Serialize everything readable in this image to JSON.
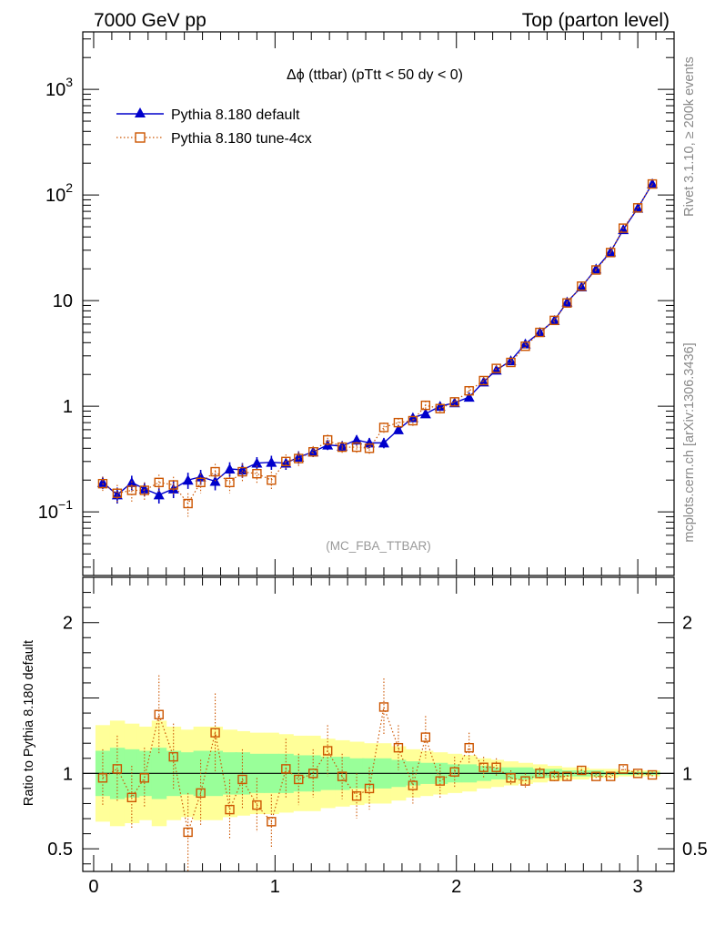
{
  "header": {
    "left": "7000 GeV pp",
    "right": "Top (parton level)"
  },
  "side_labels": {
    "rivet": "Rivet 3.1.10, ≥ 200k events",
    "mcplots": "mcplots.cern.ch [arXiv:1306.3436]"
  },
  "chart_data": [
    {
      "type": "line",
      "title": "Δϕ (ttbar) (pTtt < 50 dy < 0)",
      "watermark": "(MC_FBA_TTBAR)",
      "yscale": "log",
      "xlim": [
        -0.06,
        3.2
      ],
      "ylim": [
        0.025,
        3500
      ],
      "ytick_labels": [
        {
          "value": 0.1,
          "base": "10",
          "exp": "−1"
        },
        {
          "value": 1,
          "base": "1",
          "exp": ""
        },
        {
          "value": 10,
          "base": "10",
          "exp": ""
        },
        {
          "value": 100,
          "base": "10",
          "exp": "2"
        },
        {
          "value": 1000,
          "base": "10",
          "exp": "3"
        }
      ],
      "legend_position": "top-left",
      "x": [
        0.05,
        0.13,
        0.21,
        0.28,
        0.36,
        0.44,
        0.52,
        0.59,
        0.67,
        0.75,
        0.82,
        0.9,
        0.98,
        1.06,
        1.13,
        1.21,
        1.29,
        1.37,
        1.45,
        1.52,
        1.6,
        1.68,
        1.76,
        1.83,
        1.91,
        1.99,
        2.07,
        2.15,
        2.22,
        2.3,
        2.38,
        2.46,
        2.54,
        2.61,
        2.69,
        2.77,
        2.85,
        2.92,
        3.0,
        3.08
      ],
      "series": [
        {
          "name": "Pythia 8.180 default",
          "color": "#0000cc",
          "marker": "filled-triangle",
          "values": [
            0.19,
            0.145,
            0.19,
            0.165,
            0.145,
            0.165,
            0.2,
            0.215,
            0.195,
            0.255,
            0.25,
            0.29,
            0.295,
            0.29,
            0.33,
            0.37,
            0.43,
            0.42,
            0.48,
            0.45,
            0.45,
            0.6,
            0.78,
            0.85,
            1.0,
            1.08,
            1.22,
            1.7,
            2.2,
            2.7,
            3.9,
            5.0,
            6.5,
            9.7,
            13.5,
            20.0,
            29.0,
            47.0,
            75.0,
            128.0
          ],
          "errors": [
            0.025,
            0.025,
            0.03,
            0.025,
            0.025,
            0.03,
            0.035,
            0.035,
            0.035,
            0.04,
            0.04,
            0.04,
            0.045,
            0.04,
            0.045,
            0.04,
            0.045,
            0.045,
            0.05,
            0.05,
            0.05,
            0.05,
            0.06,
            0.06,
            0.07,
            0.07,
            0.07,
            0.08,
            0.09,
            0.1,
            0.12,
            0.15,
            0.18,
            0.25,
            0.3,
            0.4,
            0.5,
            0.8,
            1.1,
            1.6
          ]
        },
        {
          "name": "Pythia 8.180 tune-4cx",
          "color": "#cc5500",
          "marker": "open-square",
          "values": [
            0.185,
            0.15,
            0.16,
            0.16,
            0.19,
            0.18,
            0.12,
            0.19,
            0.24,
            0.19,
            0.24,
            0.23,
            0.2,
            0.3,
            0.32,
            0.37,
            0.48,
            0.41,
            0.41,
            0.4,
            0.63,
            0.7,
            0.73,
            1.02,
            0.95,
            1.1,
            1.4,
            1.75,
            2.28,
            2.6,
            3.7,
            5.0,
            6.5,
            9.5,
            13.7,
            19.5,
            28.5,
            48.5,
            75.5,
            127.0
          ],
          "errors": [
            0.03,
            0.03,
            0.035,
            0.03,
            0.035,
            0.035,
            0.03,
            0.04,
            0.045,
            0.04,
            0.045,
            0.045,
            0.04,
            0.05,
            0.05,
            0.05,
            0.06,
            0.05,
            0.05,
            0.05,
            0.07,
            0.07,
            0.08,
            0.1,
            0.1,
            0.1,
            0.12,
            0.14,
            0.16,
            0.18,
            0.22,
            0.25,
            0.3,
            0.35,
            0.45,
            0.55,
            0.7,
            0.95,
            1.3,
            1.8
          ]
        }
      ]
    },
    {
      "type": "line",
      "ylabel": "Ratio to Pythia 8.180 default",
      "xlim": [
        -0.06,
        3.2
      ],
      "ylim": [
        0.35,
        2.3
      ],
      "xticks": [
        0,
        1,
        2,
        3
      ],
      "yticks": [
        0.5,
        1,
        2
      ],
      "ytick_labels": [
        "0.5",
        "1",
        "2"
      ],
      "xtick_labels": [
        "0",
        "1",
        "2",
        "3"
      ],
      "reference_line": 1,
      "band_inner_color": "#99ff99",
      "band_outer_color": "#ffff99",
      "x": [
        0.05,
        0.13,
        0.21,
        0.28,
        0.36,
        0.44,
        0.52,
        0.59,
        0.67,
        0.75,
        0.82,
        0.9,
        0.98,
        1.06,
        1.13,
        1.21,
        1.29,
        1.37,
        1.45,
        1.52,
        1.6,
        1.68,
        1.76,
        1.83,
        1.91,
        1.99,
        2.07,
        2.15,
        2.22,
        2.3,
        2.38,
        2.46,
        2.54,
        2.61,
        2.69,
        2.77,
        2.85,
        2.92,
        3.0,
        3.08
      ],
      "band_inner": [
        0.15,
        0.17,
        0.16,
        0.15,
        0.17,
        0.15,
        0.14,
        0.15,
        0.15,
        0.14,
        0.14,
        0.13,
        0.13,
        0.13,
        0.12,
        0.12,
        0.11,
        0.11,
        0.1,
        0.1,
        0.1,
        0.09,
        0.08,
        0.07,
        0.07,
        0.06,
        0.06,
        0.05,
        0.04,
        0.04,
        0.04,
        0.03,
        0.03,
        0.02,
        0.02,
        0.02,
        0.01,
        0.01,
        0.01,
        0.01
      ],
      "band_outer": [
        0.32,
        0.35,
        0.33,
        0.31,
        0.35,
        0.31,
        0.29,
        0.31,
        0.31,
        0.29,
        0.28,
        0.27,
        0.27,
        0.26,
        0.25,
        0.25,
        0.23,
        0.22,
        0.21,
        0.2,
        0.2,
        0.18,
        0.16,
        0.15,
        0.14,
        0.13,
        0.12,
        0.1,
        0.09,
        0.08,
        0.07,
        0.06,
        0.05,
        0.04,
        0.04,
        0.03,
        0.03,
        0.02,
        0.02,
        0.02
      ],
      "series": [
        {
          "name": "Pythia 8.180 tune-4cx",
          "color": "#cc5500",
          "marker": "open-square",
          "values": [
            0.97,
            1.03,
            0.84,
            0.97,
            1.39,
            1.11,
            0.61,
            0.87,
            1.27,
            0.76,
            0.96,
            0.79,
            0.68,
            1.03,
            0.96,
            1.0,
            1.15,
            0.98,
            0.85,
            0.9,
            1.44,
            1.17,
            0.92,
            1.24,
            0.95,
            1.01,
            1.17,
            1.04,
            1.04,
            0.97,
            0.95,
            1.0,
            0.98,
            0.98,
            1.02,
            0.98,
            0.98,
            1.03,
            1.0,
            0.99
          ],
          "errors": [
            0.19,
            0.22,
            0.21,
            0.2,
            0.26,
            0.22,
            0.26,
            0.22,
            0.26,
            0.2,
            0.2,
            0.18,
            0.18,
            0.2,
            0.17,
            0.16,
            0.17,
            0.15,
            0.15,
            0.14,
            0.19,
            0.15,
            0.12,
            0.14,
            0.11,
            0.1,
            0.1,
            0.07,
            0.06,
            0.05,
            0.05,
            0.04,
            0.04,
            0.03,
            0.03,
            0.02,
            0.02,
            0.02,
            0.02,
            0.02
          ]
        }
      ]
    }
  ]
}
